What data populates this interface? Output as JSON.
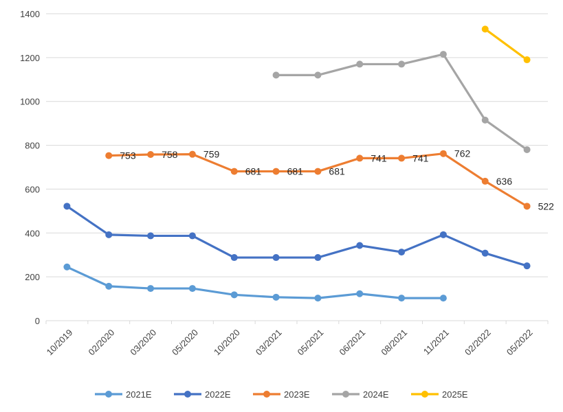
{
  "chart_data": {
    "type": "line",
    "categories": [
      "10/2019",
      "02/2020",
      "03/2020",
      "05/2020",
      "10/2020",
      "03/2021",
      "05/2021",
      "06/2021",
      "08/2021",
      "11/2021",
      "02/2022",
      "05/2022"
    ],
    "ylim": [
      0,
      1400
    ],
    "yticks": [
      0,
      200,
      400,
      600,
      800,
      1000,
      1200,
      1400
    ],
    "grid": true,
    "legend_position": "bottom",
    "series": [
      {
        "name": "2021E",
        "color": "#5B9BD5",
        "values": [
          245,
          157,
          147,
          147,
          118,
          107,
          103,
          123,
          103,
          103,
          null,
          null
        ],
        "labels": null
      },
      {
        "name": "2022E",
        "color": "#4472C4",
        "values": [
          522,
          392,
          387,
          387,
          288,
          288,
          288,
          343,
          313,
          392,
          308,
          250
        ],
        "labels": null
      },
      {
        "name": "2023E",
        "color": "#ED7D31",
        "values": [
          null,
          753,
          758,
          759,
          681,
          681,
          681,
          741,
          741,
          762,
          636,
          522
        ],
        "labels": [
          null,
          "753",
          "758",
          "759",
          "681",
          "681",
          "681",
          "741",
          "741",
          "762",
          "636",
          "522"
        ]
      },
      {
        "name": "2024E",
        "color": "#A5A5A5",
        "values": [
          null,
          null,
          null,
          null,
          null,
          1120,
          1120,
          1170,
          1170,
          1215,
          915,
          780
        ],
        "labels": null
      },
      {
        "name": "2025E",
        "color": "#FFC000",
        "values": [
          null,
          null,
          null,
          null,
          null,
          null,
          null,
          null,
          null,
          null,
          1330,
          1190
        ],
        "labels": null
      }
    ]
  }
}
